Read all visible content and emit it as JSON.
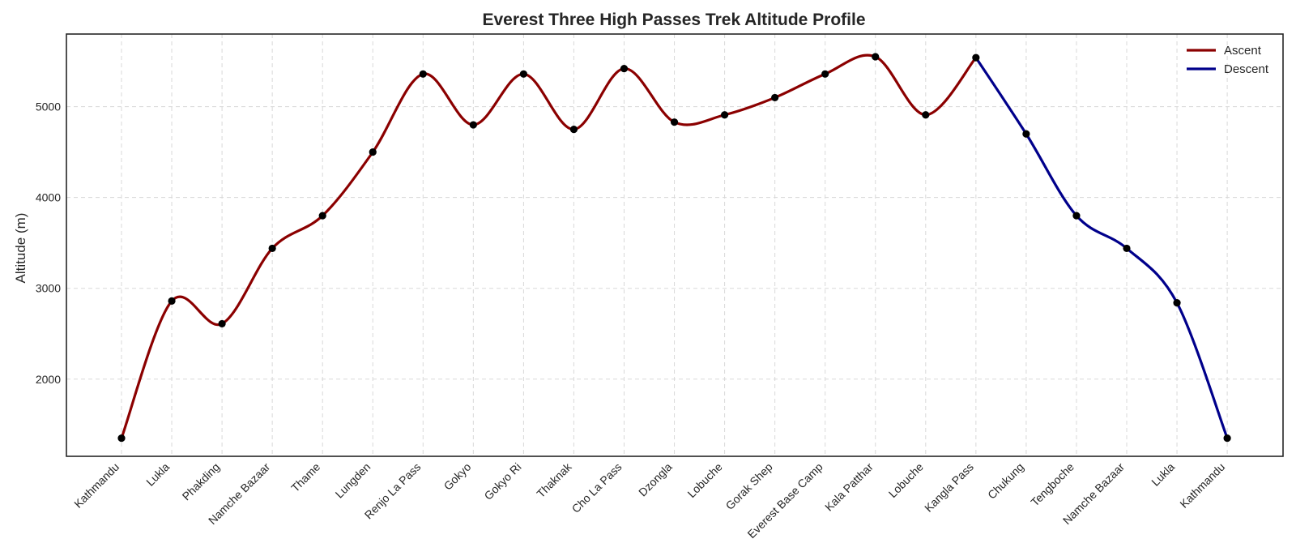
{
  "chart_data": {
    "type": "line",
    "title": "Everest Three High Passes Trek Altitude Profile",
    "xlabel": "",
    "ylabel": "Altitude (m)",
    "categories": [
      "Kathmandu",
      "Lukla",
      "Phakding",
      "Namche Bazaar",
      "Thame",
      "Lungden",
      "Renjo La Pass",
      "Gokyo",
      "Gokyo Ri",
      "Thaknak",
      "Cho La Pass",
      "Dzongla",
      "Lobuche",
      "Gorak Shep",
      "Everest Base Camp",
      "Kala Patthar",
      "Lobuche",
      "Kangla Pass",
      "Chukung",
      "Tengboche",
      "Namche Bazaar",
      "Lukla",
      "Kathmandu"
    ],
    "values": [
      1350,
      2860,
      2610,
      3440,
      3800,
      4500,
      5360,
      4800,
      5360,
      4750,
      5420,
      4830,
      4910,
      5100,
      5360,
      5550,
      4910,
      5540,
      4700,
      3800,
      3440,
      2840,
      1350
    ],
    "series": [
      {
        "name": "Ascent",
        "color": "#8b0000",
        "start_index": 0,
        "end_index": 17
      },
      {
        "name": "Descent",
        "color": "#00008b",
        "start_index": 17,
        "end_index": 22
      }
    ],
    "marker_color": "#000000",
    "ylim": [
      1150,
      5800
    ],
    "yticks": [
      2000,
      3000,
      4000,
      5000
    ],
    "grid": true,
    "legend_position": "top-right"
  }
}
